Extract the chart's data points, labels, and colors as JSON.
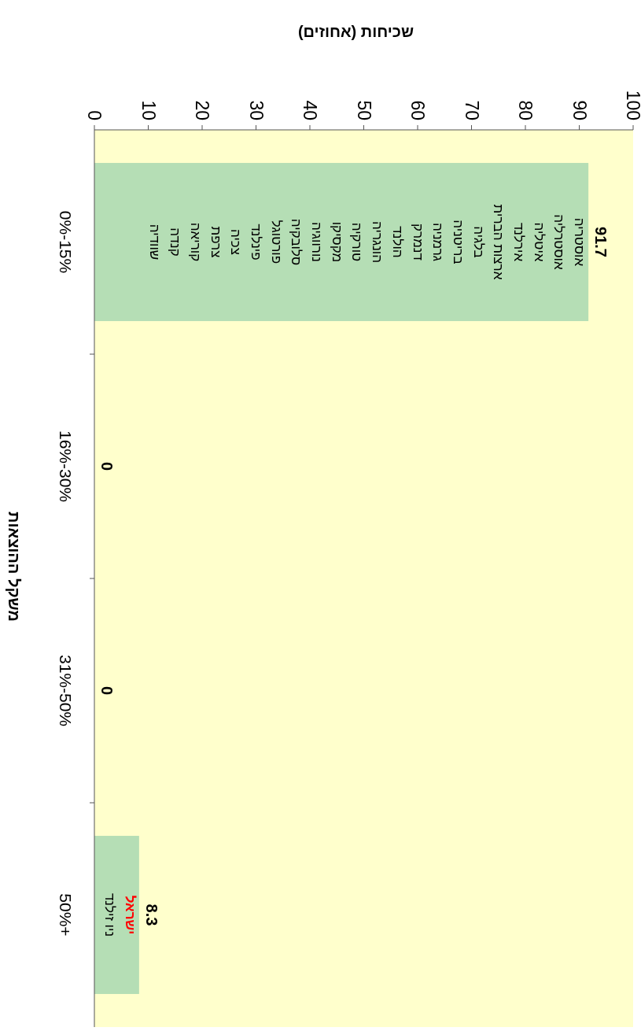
{
  "chart_data": {
    "type": "bar",
    "orientation": "horizontal",
    "xlabel": "שכיחות (אחוזים)",
    "ylabel": "משקל ההוצאות",
    "categories": [
      "0%-15%",
      "16%-30%",
      "31%-50%",
      "50%+"
    ],
    "values": [
      91.7,
      0,
      0,
      8.3
    ],
    "color": "#b5deb5",
    "xlim": [
      0,
      100
    ],
    "xticks": [
      0,
      10,
      20,
      30,
      40,
      50,
      60,
      70,
      80,
      90,
      100
    ],
    "data_labels": true,
    "annotations": [
      "אוסטריה",
      "אוסטרליה",
      "איטליה",
      "אירלנד",
      "ארצות הברית",
      "בלגיה",
      "בריטניה",
      "גרמניה",
      "דנמרק",
      "הולנד",
      "הונגריה",
      "טורקיה",
      "מקסיקו",
      "נורווגיה",
      "סלובקיה",
      "פורטוגל",
      "פינלנד",
      "צכיה",
      "צרפת",
      "קוריאה",
      "קנדה",
      "שוודיה",
      "**ישראל**",
      "ניו זילנד"
    ]
  }
}
